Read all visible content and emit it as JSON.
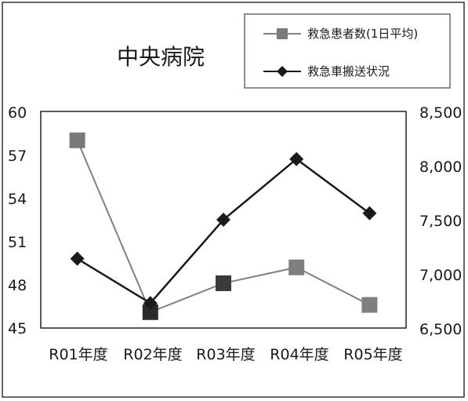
{
  "chart_data": {
    "type": "line",
    "title": "中央病院",
    "categories": [
      "R01年度",
      "R02年度",
      "R03年度",
      "R04年度",
      "R05年度"
    ],
    "y_left": {
      "ticks": [
        "60",
        "57",
        "54",
        "51",
        "48",
        "45"
      ],
      "ylim": [
        45,
        60
      ]
    },
    "y_right": {
      "ticks": [
        "8,500",
        "8,000",
        "7,500",
        "7,000",
        "6,500"
      ],
      "ylim": [
        6500,
        8500
      ]
    },
    "series": [
      {
        "name": "救急患者数(1日平均)",
        "axis": "left",
        "marker": "square",
        "line_color": "#808080",
        "marker_colors": [
          "#7a7a7a",
          "#2a2a2a",
          "#3a3a3a",
          "#7f7f7f",
          "#7f7f7f"
        ],
        "values": [
          58.0,
          46.1,
          48.1,
          49.2,
          46.6
        ]
      },
      {
        "name": "救急車搬送状況",
        "axis": "right",
        "marker": "diamond",
        "line_color": "#1a1a1a",
        "marker_colors": [
          "#1a1a1a",
          "#1a1a1a",
          "#1a1a1a",
          "#1a1a1a",
          "#1a1a1a"
        ],
        "values": [
          7140,
          6730,
          7500,
          8060,
          7560
        ]
      }
    ],
    "grid": false,
    "legend_position": "top-right"
  }
}
